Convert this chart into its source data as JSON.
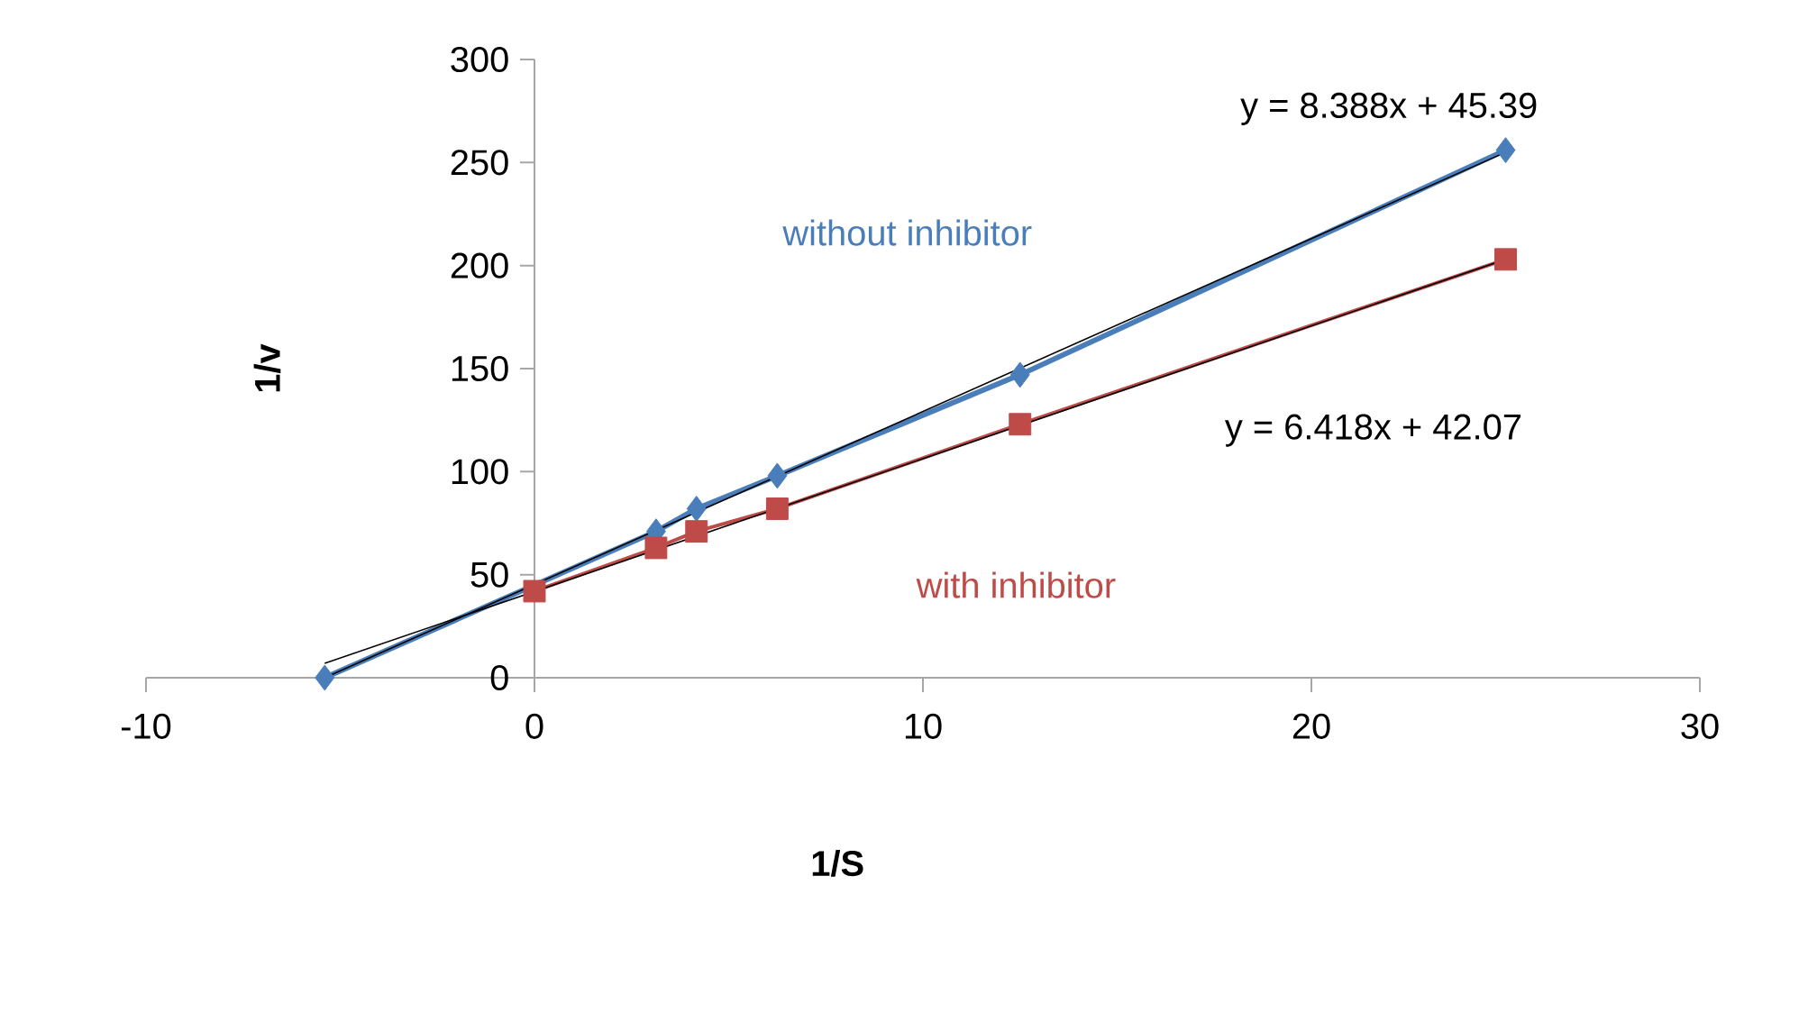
{
  "chart_data": {
    "type": "line",
    "xlabel": "1/S",
    "ylabel": "1/v",
    "xlim": [
      -10,
      30
    ],
    "ylim": [
      0,
      300
    ],
    "xticks": [
      -10,
      0,
      10,
      20,
      30
    ],
    "yticks": [
      0,
      50,
      100,
      150,
      200,
      250,
      300
    ],
    "grid": false,
    "legend": false,
    "series": [
      {
        "name": "without inhibitor",
        "color": "#4a7ebb",
        "marker": "diamond",
        "x": [
          -5.4,
          3.13,
          4.17,
          6.25,
          12.5,
          25
        ],
        "values": [
          0,
          71,
          82,
          98,
          147,
          256
        ]
      },
      {
        "name": "with inhibitor",
        "color": "#be4b48",
        "marker": "square",
        "x": [
          0,
          3.13,
          4.17,
          6.25,
          12.5,
          25
        ],
        "values": [
          42,
          63,
          71,
          82,
          123,
          203
        ]
      },
      {
        "type": "line",
        "color": "#000000",
        "marker": "none",
        "x": [
          -5.4,
          25
        ],
        "values": [
          0,
          255
        ]
      },
      {
        "type": "line",
        "color": "#000000",
        "marker": "none",
        "x": [
          -5.4,
          25
        ],
        "values": [
          7,
          203
        ]
      }
    ],
    "annotations": [
      "y = 8.388x + 45.39",
      "y = 6.418x + 42.07"
    ]
  }
}
